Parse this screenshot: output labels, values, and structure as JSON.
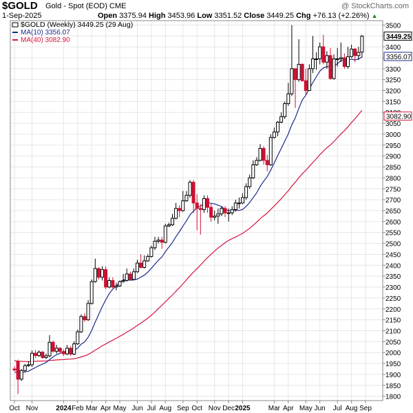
{
  "header": {
    "symbol": "$GOLD",
    "description": "Gold - Spot (EOD)",
    "exchange": "CME",
    "date": "1-Sep-2025",
    "open_label": "Open",
    "open": "3375.94",
    "high_label": "High",
    "high": "3453.96",
    "low_label": "Low",
    "low": "3351.52",
    "close_label": "Close",
    "close": "3449.25",
    "chg_label": "Chg",
    "chg": "+76.13 (+2.26%)",
    "watermark": "@ StockCharts.com"
  },
  "legend": {
    "price": "$GOLD (Weekly) 3449.25 (29 Aug)",
    "ma10": "MA(10) 3356.07",
    "ma40": "MA(40) 3082.90"
  },
  "colors": {
    "up": "#000000",
    "down": "#cc1133",
    "ma10": "#1a2a8c",
    "ma40": "#d6143c",
    "grid": "#e6e6e6"
  },
  "chart_data": {
    "type": "candlestick",
    "interval": "weekly",
    "ylim": [
      1780,
      3520
    ],
    "y_ticks": [
      1800,
      1850,
      1900,
      1950,
      2000,
      2050,
      2100,
      2150,
      2200,
      2250,
      2300,
      2350,
      2400,
      2450,
      2500,
      2550,
      2600,
      2650,
      2700,
      2750,
      2800,
      2850,
      2900,
      2950,
      3000,
      3050,
      3100,
      3150,
      3200,
      3250,
      3300,
      3350,
      3400,
      3450,
      3500
    ],
    "x_labels": [
      "Oct",
      "Nov",
      "2024",
      "Feb",
      "Mar",
      "Apr",
      "May",
      "Jun",
      "Jul",
      "Aug",
      "Sep",
      "Oct",
      "Nov",
      "Dec",
      "2025",
      "Mar",
      "Apr",
      "May",
      "Jun",
      "Jul",
      "Aug",
      "Sep"
    ],
    "x_label_week": [
      0,
      5,
      14,
      18,
      22,
      26,
      30,
      35,
      39,
      43,
      48,
      52,
      57,
      61,
      65,
      74,
      78,
      83,
      87,
      92,
      96,
      100
    ],
    "bold_labels": [
      "2024",
      "2025"
    ],
    "last_price_labels": {
      "price": "3449.25",
      "ma10": "3356.07",
      "ma40": "3082.90"
    },
    "close": [
      1920,
      1878,
      1918,
      1940,
      1944,
      1997,
      1986,
      2002,
      1977,
      1985,
      2047,
      2006,
      2020,
      2005,
      1994,
      2020,
      1993,
      2040,
      2095,
      2165,
      2150,
      2225,
      2325,
      2385,
      2345,
      2380,
      2300,
      2330,
      2300,
      2305,
      2325,
      2330,
      2360,
      2335,
      2370,
      2410,
      2390,
      2420,
      2440,
      2480,
      2510,
      2515,
      2505,
      2580,
      2585,
      2615,
      2660,
      2650,
      2695,
      2720,
      2780,
      2685,
      2660,
      2655,
      2705,
      2665,
      2620,
      2625,
      2635,
      2660,
      2640,
      2640,
      2655,
      2685,
      2685,
      2710,
      2760,
      2800,
      2860,
      2880,
      2935,
      2880,
      2860,
      2985,
      3010,
      3055,
      3080,
      3140,
      3185,
      3300,
      3250,
      3320,
      3245,
      3200,
      3300,
      3345,
      3345,
      3400,
      3330,
      3360,
      3255,
      3345,
      3345,
      3350,
      3310,
      3355,
      3390,
      3360,
      3375,
      3449.25
    ],
    "open": [
      1925,
      1960,
      1878,
      1918,
      1940,
      1944,
      1997,
      1986,
      2002,
      1977,
      1985,
      2047,
      2006,
      2020,
      2005,
      1994,
      2020,
      1993,
      2040,
      2095,
      2165,
      2150,
      2225,
      2325,
      2385,
      2345,
      2380,
      2300,
      2330,
      2300,
      2305,
      2325,
      2330,
      2360,
      2335,
      2370,
      2410,
      2390,
      2420,
      2440,
      2480,
      2510,
      2515,
      2505,
      2580,
      2585,
      2615,
      2660,
      2650,
      2695,
      2720,
      2780,
      2685,
      2660,
      2655,
      2705,
      2665,
      2620,
      2625,
      2635,
      2660,
      2640,
      2640,
      2655,
      2685,
      2685,
      2710,
      2760,
      2800,
      2860,
      2880,
      2935,
      2880,
      2860,
      2985,
      3010,
      3055,
      3080,
      3140,
      3185,
      3300,
      3250,
      3320,
      3245,
      3200,
      3300,
      3345,
      3345,
      3400,
      3330,
      3360,
      3255,
      3345,
      3345,
      3350,
      3310,
      3355,
      3390,
      3360,
      3375.94
    ],
    "high": [
      1938,
      1968,
      1925,
      1948,
      1960,
      2010,
      2012,
      2010,
      2008,
      1995,
      2080,
      2055,
      2035,
      2025,
      2015,
      2035,
      2030,
      2052,
      2105,
      2175,
      2180,
      2240,
      2335,
      2430,
      2390,
      2395,
      2395,
      2345,
      2345,
      2320,
      2330,
      2360,
      2385,
      2370,
      2385,
      2425,
      2450,
      2445,
      2450,
      2490,
      2530,
      2530,
      2530,
      2590,
      2595,
      2635,
      2685,
      2675,
      2740,
      2740,
      2790,
      2790,
      2725,
      2680,
      2720,
      2720,
      2680,
      2650,
      2660,
      2670,
      2670,
      2660,
      2670,
      2700,
      2710,
      2730,
      2775,
      2815,
      2880,
      2895,
      2955,
      2945,
      2905,
      3000,
      3030,
      3060,
      3100,
      3150,
      3235,
      3500,
      3300,
      3435,
      3325,
      3300,
      3320,
      3450,
      3375,
      3420,
      3455,
      3380,
      3395,
      3365,
      3395,
      3420,
      3370,
      3400,
      3410,
      3395,
      3400,
      3453.96
    ],
    "low": [
      1915,
      1810,
      1870,
      1910,
      1935,
      1935,
      1975,
      1980,
      1972,
      1970,
      1978,
      2000,
      1995,
      1995,
      1985,
      1988,
      1985,
      1988,
      2035,
      2090,
      2140,
      2145,
      2220,
      2320,
      2335,
      2330,
      2290,
      2295,
      2295,
      2285,
      2300,
      2320,
      2325,
      2330,
      2330,
      2365,
      2385,
      2385,
      2415,
      2435,
      2470,
      2500,
      2475,
      2500,
      2575,
      2580,
      2610,
      2620,
      2645,
      2690,
      2710,
      2640,
      2560,
      2540,
      2640,
      2640,
      2600,
      2605,
      2590,
      2625,
      2620,
      2600,
      2630,
      2645,
      2660,
      2680,
      2700,
      2750,
      2795,
      2855,
      2875,
      2860,
      2830,
      2855,
      2980,
      2990,
      3050,
      3070,
      3130,
      3175,
      3120,
      3240,
      3240,
      3180,
      3200,
      3280,
      3295,
      3320,
      3320,
      3300,
      3250,
      3250,
      3310,
      3330,
      3300,
      3300,
      3350,
      3330,
      3340,
      3351.52
    ],
    "ma10_last": 3356.07,
    "ma40_last": 3082.9,
    "ma40_first": 1964
  }
}
